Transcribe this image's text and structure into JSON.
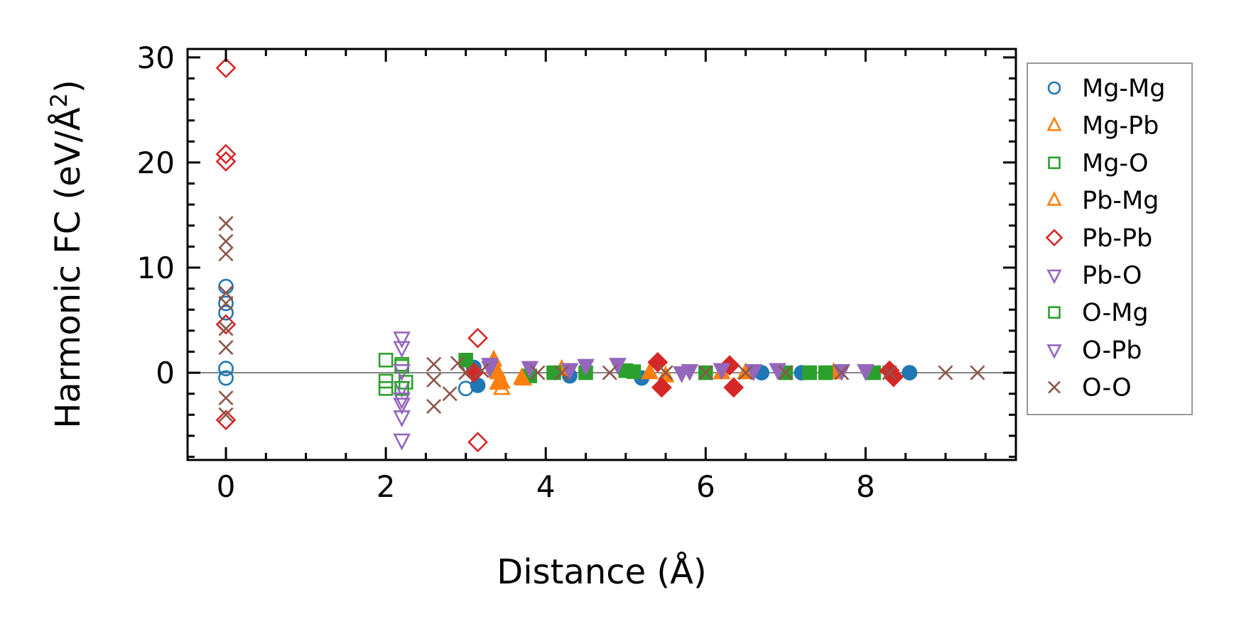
{
  "chart_data": {
    "type": "scatter",
    "title": "",
    "xlabel": "Distance (Å)",
    "ylabel_main": "Harmonic FC (eV/Å",
    "ylabel_sup": "2",
    "ylabel_end": ")",
    "xlim": [
      -0.48,
      9.88
    ],
    "ylim": [
      -8.3,
      30.8
    ],
    "xticks": [
      0,
      2,
      4,
      6,
      8
    ],
    "xtick_labels": [
      "0",
      "2",
      "4",
      "6",
      "8"
    ],
    "yticks": [
      0,
      10,
      20,
      30
    ],
    "ytick_labels": [
      "0",
      "10",
      "20",
      "30"
    ],
    "grid": false,
    "legend_position": "outside-right",
    "zero_line": true,
    "series": [
      {
        "name": "Mg-Mg",
        "marker": "circle",
        "color": "#1f77b4",
        "points": [
          [
            0,
            8.2
          ],
          [
            0,
            6.6
          ],
          [
            0,
            5.7
          ],
          [
            0,
            0.4
          ],
          [
            0,
            -0.5
          ],
          [
            3.0,
            -1.5
          ],
          [
            3.15,
            -1.2
          ],
          [
            3.1,
            0.5
          ],
          [
            4.3,
            -0.3
          ],
          [
            5.2,
            -0.5
          ],
          [
            6.7,
            0
          ],
          [
            7.2,
            0
          ],
          [
            8.55,
            0
          ]
        ]
      },
      {
        "name": "Mg-Pb",
        "marker": "triangle-up",
        "color": "#ff7f0e",
        "points": [
          [
            3.35,
            0.5
          ],
          [
            3.4,
            -1
          ],
          [
            3.45,
            -0.9
          ],
          [
            3.72,
            -0.6
          ],
          [
            4.2,
            0.3
          ],
          [
            5.5,
            -0.3
          ],
          [
            6.2,
            0
          ],
          [
            7.6,
            0
          ]
        ]
      },
      {
        "name": "Mg-O",
        "marker": "square",
        "color": "#2ca02c",
        "points": [
          [
            2.2,
            0.6
          ],
          [
            2.25,
            -0.9
          ],
          [
            3.0,
            1.2
          ],
          [
            3.8,
            -0.3
          ],
          [
            4.5,
            0
          ],
          [
            5.0,
            0.2
          ],
          [
            6.0,
            0
          ],
          [
            7.0,
            0
          ],
          [
            7.5,
            0
          ],
          [
            8.1,
            0
          ]
        ]
      },
      {
        "name": "Pb-Mg",
        "marker": "triangle-up",
        "color": "#ff7f0e",
        "points": [
          [
            3.35,
            1.2
          ],
          [
            3.4,
            0
          ],
          [
            3.45,
            -1.5
          ],
          [
            3.7,
            -0.5
          ],
          [
            5.3,
            0
          ],
          [
            6.5,
            0
          ]
        ]
      },
      {
        "name": "Pb-Pb",
        "marker": "diamond",
        "color": "#d62728",
        "points": [
          [
            0,
            29
          ],
          [
            0,
            20.8
          ],
          [
            0,
            20.1
          ],
          [
            0,
            4.6
          ],
          [
            0,
            -4.5
          ],
          [
            3.15,
            3.3
          ],
          [
            3.15,
            -6.6
          ],
          [
            3.1,
            0
          ],
          [
            5.4,
            1
          ],
          [
            5.45,
            -1.4
          ],
          [
            6.3,
            0.7
          ],
          [
            6.35,
            -1.4
          ],
          [
            8.3,
            0.2
          ],
          [
            8.35,
            -0.4
          ]
        ]
      },
      {
        "name": "Pb-O",
        "marker": "triangle-down",
        "color": "#9467bd",
        "points": [
          [
            2.2,
            3.3
          ],
          [
            2.2,
            2.4
          ],
          [
            2.2,
            -1.4
          ],
          [
            2.2,
            -3
          ],
          [
            2.2,
            -4.2
          ],
          [
            2.2,
            -6.4
          ],
          [
            3.3,
            0.5
          ],
          [
            3.8,
            0.5
          ],
          [
            4.3,
            0.3
          ],
          [
            4.9,
            0.8
          ],
          [
            5.8,
            0.2
          ],
          [
            6.2,
            0.3
          ],
          [
            6.9,
            0.3
          ],
          [
            7.7,
            0.2
          ]
        ]
      },
      {
        "name": "O-Mg",
        "marker": "square",
        "color": "#2ca02c",
        "points": [
          [
            2.0,
            1.2
          ],
          [
            2.0,
            -0.8
          ],
          [
            2.0,
            -1.5
          ],
          [
            2.2,
            0.8
          ],
          [
            2.2,
            -1.5
          ],
          [
            4.1,
            0
          ],
          [
            5.1,
            0.1
          ],
          [
            7.3,
            0
          ]
        ]
      },
      {
        "name": "O-Pb",
        "marker": "triangle-down",
        "color": "#9467bd",
        "points": [
          [
            2.2,
            0.2
          ],
          [
            2.2,
            -2.5
          ],
          [
            3.3,
            0.8
          ],
          [
            4.5,
            0.7
          ],
          [
            5.7,
            0
          ],
          [
            6.6,
            0.2
          ],
          [
            8.0,
            0.2
          ]
        ]
      },
      {
        "name": "O-O",
        "marker": "x",
        "color": "#8c564b",
        "points": [
          [
            0,
            14.2
          ],
          [
            0,
            12.5
          ],
          [
            0,
            11.3
          ],
          [
            0,
            7.6
          ],
          [
            0,
            6.6
          ],
          [
            0,
            4.2
          ],
          [
            0,
            2.4
          ],
          [
            0,
            -2.4
          ],
          [
            0,
            -4
          ],
          [
            2.6,
            0.8
          ],
          [
            2.6,
            -0.7
          ],
          [
            2.6,
            -3.2
          ],
          [
            2.8,
            -2
          ],
          [
            2.9,
            0.9
          ],
          [
            3.0,
            0
          ],
          [
            3.2,
            0.2
          ],
          [
            3.9,
            0
          ],
          [
            4.2,
            0
          ],
          [
            4.8,
            0
          ],
          [
            5.5,
            0
          ],
          [
            6.0,
            0
          ],
          [
            6.5,
            0
          ],
          [
            7.0,
            0
          ],
          [
            7.7,
            0
          ],
          [
            8.3,
            0
          ],
          [
            9.0,
            0
          ],
          [
            9.4,
            0
          ]
        ]
      }
    ]
  }
}
